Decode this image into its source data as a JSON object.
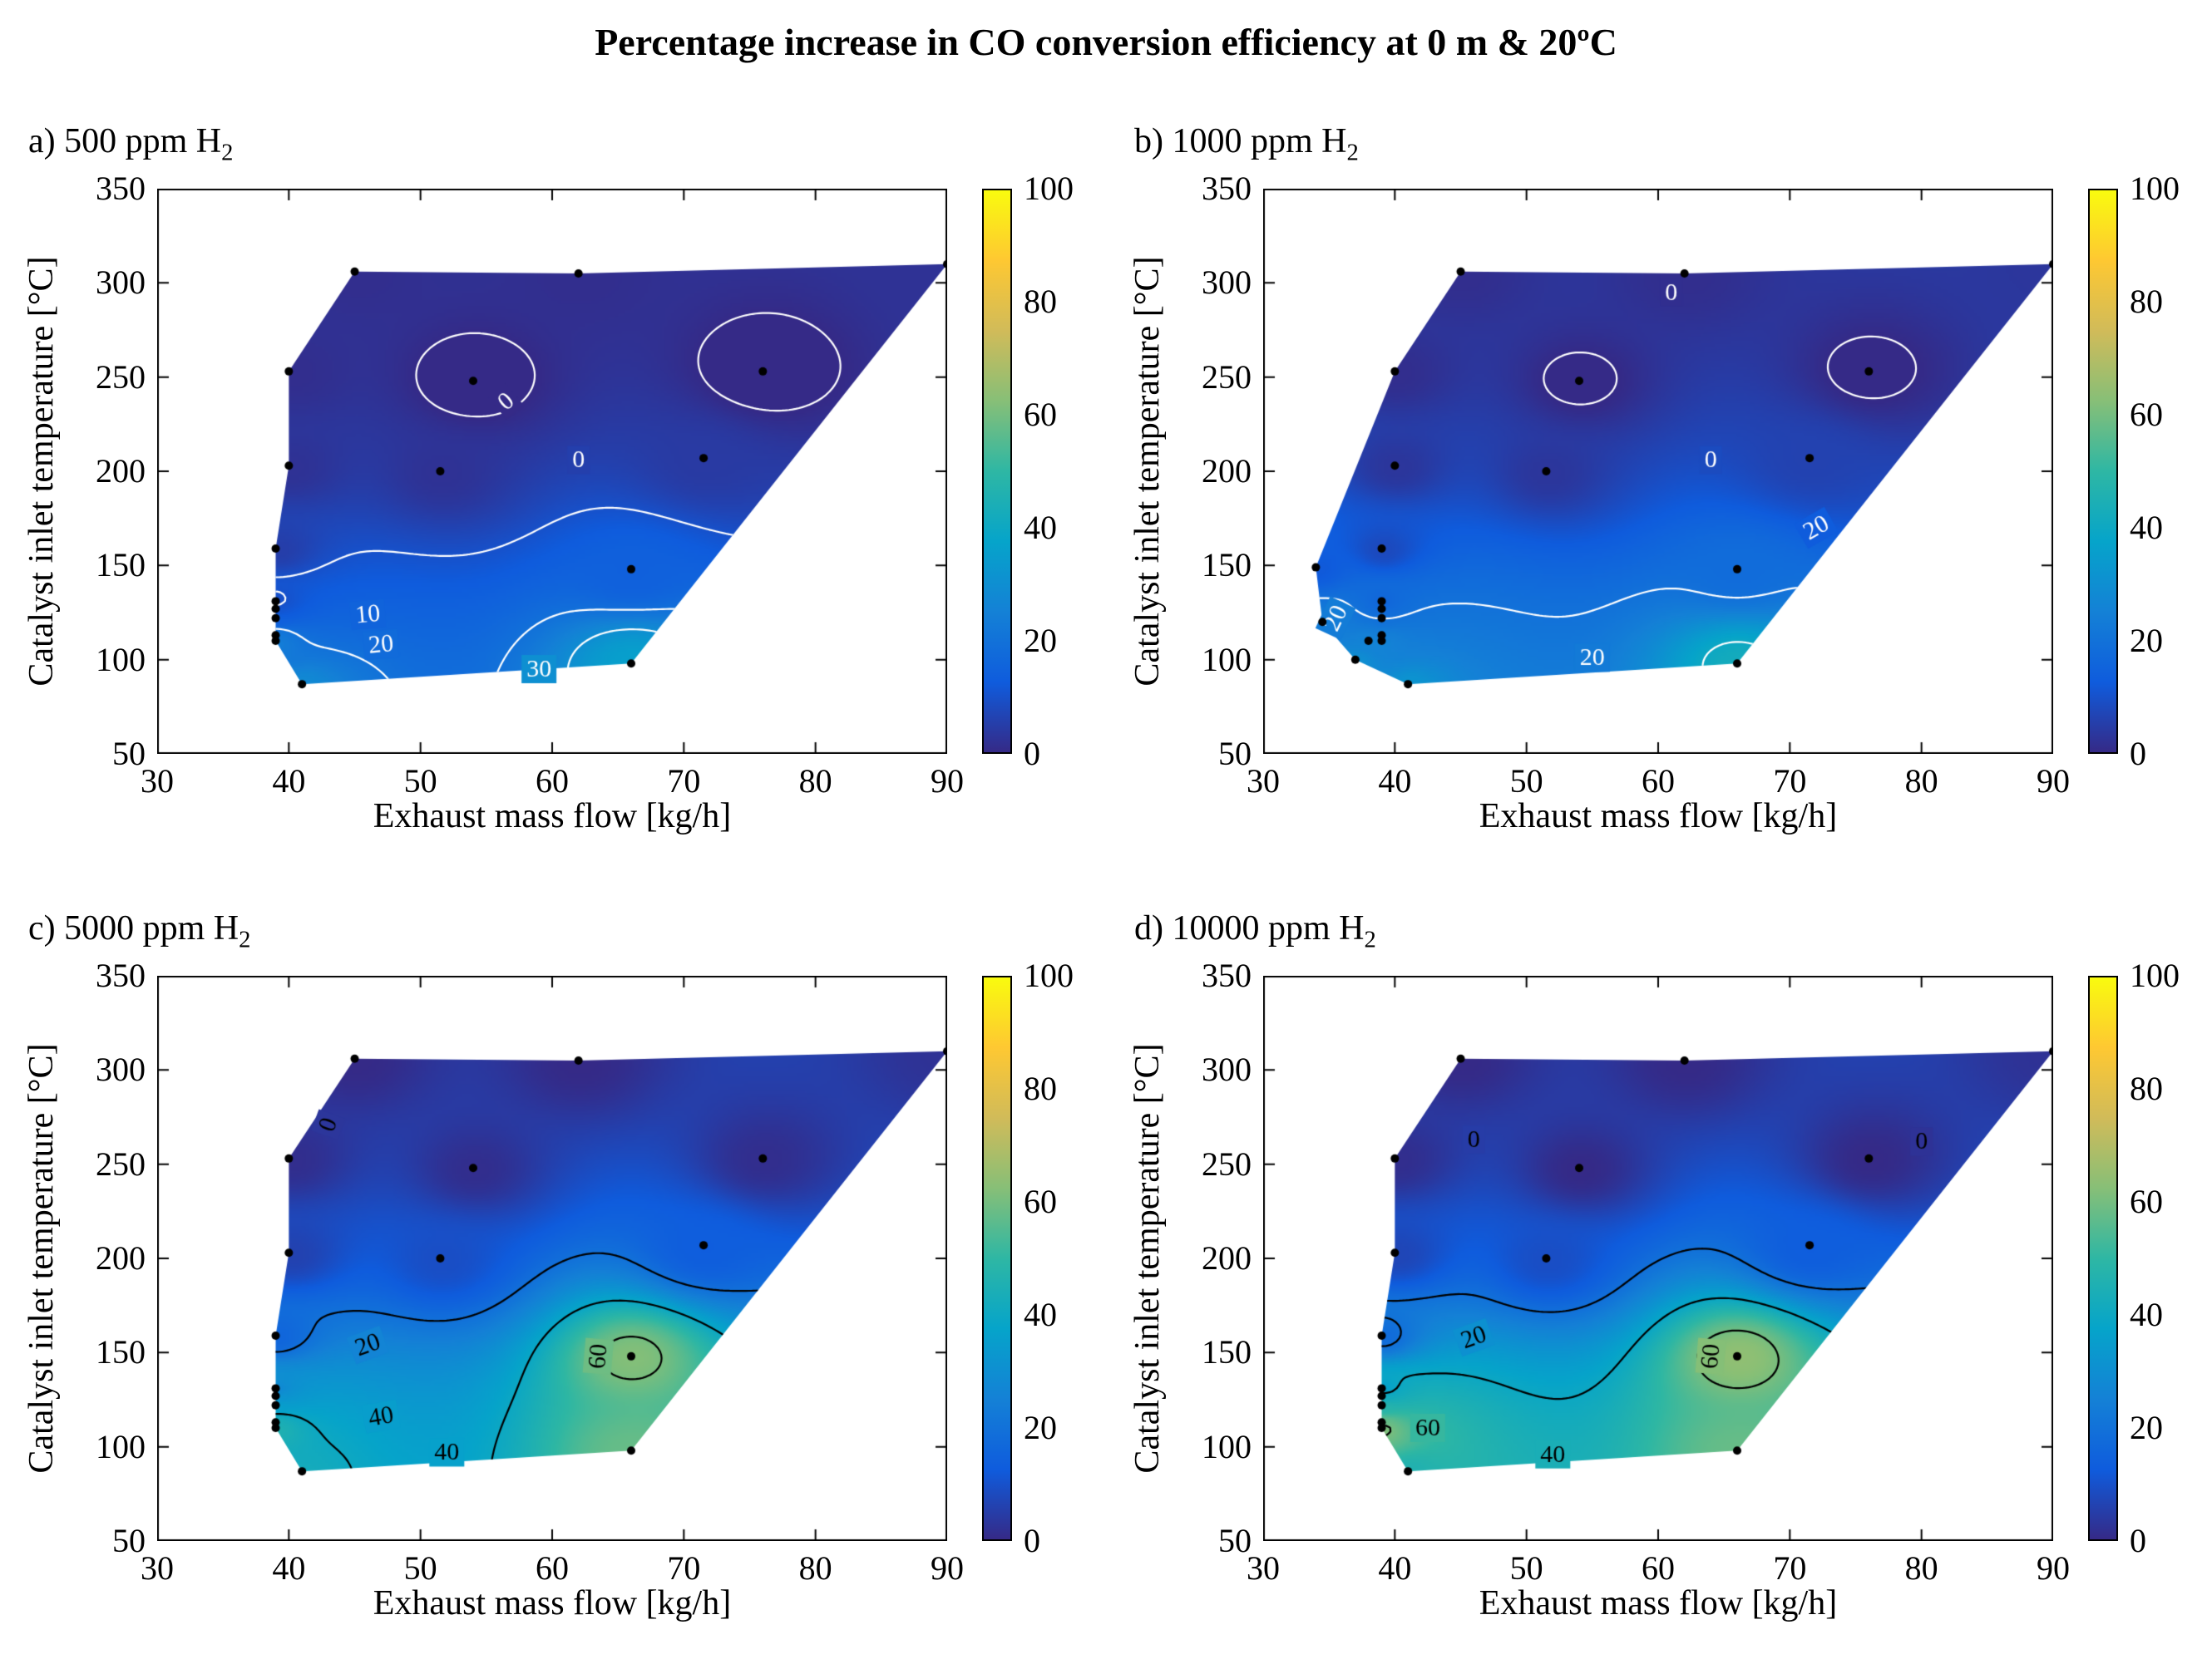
{
  "title": "Percentage increase in CO conversion efficiency at 0 m & 20ºC",
  "axes": {
    "xlabel": "Exhaust mass flow [kg/h]",
    "ylabel": "Catalyst inlet temperature [°C]",
    "xlim": [
      30,
      90
    ],
    "ylim": [
      50,
      350
    ],
    "clim": [
      0,
      100
    ],
    "xticks": [
      30,
      40,
      50,
      60,
      70,
      80,
      90
    ],
    "yticks": [
      50,
      100,
      150,
      200,
      250,
      300,
      350
    ],
    "cticks": [
      0,
      20,
      40,
      60,
      80,
      100
    ]
  },
  "colormap": {
    "name": "parula",
    "stops": [
      [
        53,
        42,
        135
      ],
      [
        15,
        92,
        221
      ],
      [
        20,
        129,
        214
      ],
      [
        6,
        164,
        202
      ],
      [
        46,
        183,
        164
      ],
      [
        135,
        191,
        119
      ],
      [
        209,
        187,
        89
      ],
      [
        254,
        200,
        50
      ],
      [
        249,
        251,
        14
      ]
    ]
  },
  "chart_data": [
    {
      "type": "filled-contour",
      "id": "a",
      "label_main": "a) 500 ppm H",
      "label_sub": "2",
      "contour_color": "#ffffff",
      "levels": [
        0,
        10,
        20,
        30
      ],
      "hull": [
        [
          41,
          87
        ],
        [
          39,
          110
        ],
        [
          39,
          131
        ],
        [
          39,
          159
        ],
        [
          40,
          203
        ],
        [
          40,
          253
        ],
        [
          45,
          306
        ],
        [
          62,
          305
        ],
        [
          90,
          310
        ],
        [
          66,
          98
        ]
      ],
      "points": [
        [
          41,
          87,
          28
        ],
        [
          39,
          110,
          24
        ],
        [
          39,
          113,
          22
        ],
        [
          39,
          122,
          14
        ],
        [
          39,
          127,
          11
        ],
        [
          39,
          131,
          9
        ],
        [
          39,
          159,
          5
        ],
        [
          40,
          203,
          2
        ],
        [
          40,
          253,
          1
        ],
        [
          45,
          306,
          1
        ],
        [
          51.5,
          200,
          2
        ],
        [
          54,
          248,
          -2
        ],
        [
          62,
          305,
          1
        ],
        [
          66,
          98,
          36
        ],
        [
          66,
          148,
          14
        ],
        [
          71.5,
          207,
          4
        ],
        [
          76,
          253,
          -2
        ],
        [
          90,
          310,
          2
        ]
      ],
      "contour_labels": [
        {
          "v": "0",
          "x": 56.5,
          "y": 237,
          "rot": 40
        },
        {
          "v": "0",
          "x": 62,
          "y": 206,
          "rot": 0
        },
        {
          "v": "10",
          "x": 46,
          "y": 124,
          "rot": 5
        },
        {
          "v": "20",
          "x": 47,
          "y": 108,
          "rot": 5
        },
        {
          "v": "30",
          "x": 59,
          "y": 95,
          "rot": 0
        }
      ]
    },
    {
      "type": "filled-contour",
      "id": "b",
      "label_main": "b) 1000 ppm H",
      "label_sub": "2",
      "contour_color": "#ffffff",
      "levels": [
        0,
        20,
        40
      ],
      "hull": [
        [
          41,
          87
        ],
        [
          37,
          100
        ],
        [
          34.5,
          120
        ],
        [
          34,
          149
        ],
        [
          40,
          253
        ],
        [
          45,
          306
        ],
        [
          62,
          305
        ],
        [
          90,
          310
        ],
        [
          66,
          98
        ]
      ],
      "points": [
        [
          41,
          87,
          32
        ],
        [
          39,
          110,
          26
        ],
        [
          39,
          113,
          24
        ],
        [
          39,
          122,
          20
        ],
        [
          39,
          127,
          18
        ],
        [
          39,
          131,
          16
        ],
        [
          39,
          159,
          8
        ],
        [
          40,
          203,
          3
        ],
        [
          40,
          253,
          1
        ],
        [
          45,
          306,
          1
        ],
        [
          51.5,
          200,
          3
        ],
        [
          54,
          248,
          -1
        ],
        [
          62,
          305,
          1
        ],
        [
          66,
          98,
          42
        ],
        [
          66,
          148,
          18
        ],
        [
          71.5,
          207,
          6
        ],
        [
          76,
          253,
          -1
        ],
        [
          90,
          310,
          3
        ],
        [
          34,
          149,
          12
        ],
        [
          34.5,
          120,
          24
        ],
        [
          37,
          100,
          30
        ],
        [
          38,
          110,
          26
        ]
      ],
      "contour_labels": [
        {
          "v": "0",
          "x": 61,
          "y": 295,
          "rot": 0
        },
        {
          "v": "0",
          "x": 64,
          "y": 206,
          "rot": 0
        },
        {
          "v": "20",
          "x": 35.5,
          "y": 122,
          "rot": 65
        },
        {
          "v": "20",
          "x": 55,
          "y": 101,
          "rot": 0
        },
        {
          "v": "20",
          "x": 72,
          "y": 170,
          "rot": 30
        }
      ]
    },
    {
      "type": "filled-contour",
      "id": "c",
      "label_main": "c) 5000 ppm H",
      "label_sub": "2",
      "contour_color": "#000000",
      "levels": [
        0,
        20,
        40,
        60
      ],
      "hull": [
        [
          41,
          87
        ],
        [
          39,
          110
        ],
        [
          39,
          131
        ],
        [
          39,
          159
        ],
        [
          40,
          203
        ],
        [
          40,
          253
        ],
        [
          45,
          306
        ],
        [
          62,
          305
        ],
        [
          90,
          310
        ],
        [
          66,
          98
        ]
      ],
      "points": [
        [
          41,
          87,
          42
        ],
        [
          39,
          110,
          46
        ],
        [
          39,
          113,
          44
        ],
        [
          39,
          122,
          36
        ],
        [
          39,
          127,
          32
        ],
        [
          39,
          131,
          28
        ],
        [
          39,
          159,
          16
        ],
        [
          40,
          203,
          6
        ],
        [
          40,
          253,
          1
        ],
        [
          45,
          306,
          0
        ],
        [
          51.5,
          200,
          9
        ],
        [
          54,
          248,
          1
        ],
        [
          62,
          305,
          0
        ],
        [
          66,
          98,
          58
        ],
        [
          66,
          148,
          62
        ],
        [
          71.5,
          207,
          13
        ],
        [
          76,
          253,
          1
        ],
        [
          90,
          310,
          2
        ]
      ],
      "contour_labels": [
        {
          "v": "0",
          "x": 43,
          "y": 271,
          "rot": 70
        },
        {
          "v": "20",
          "x": 46,
          "y": 154,
          "rot": 20
        },
        {
          "v": "40",
          "x": 47,
          "y": 116,
          "rot": 10
        },
        {
          "v": "40",
          "x": 52,
          "y": 97,
          "rot": 0
        },
        {
          "v": "60",
          "x": 63.5,
          "y": 148,
          "rot": 85
        }
      ]
    },
    {
      "type": "filled-contour",
      "id": "d",
      "label_main": "d) 10000 ppm H",
      "label_sub": "2",
      "contour_color": "#000000",
      "levels": [
        0,
        20,
        40,
        60
      ],
      "hull": [
        [
          41,
          87
        ],
        [
          39,
          110
        ],
        [
          39,
          131
        ],
        [
          39,
          159
        ],
        [
          40,
          203
        ],
        [
          40,
          253
        ],
        [
          45,
          306
        ],
        [
          62,
          305
        ],
        [
          90,
          310
        ],
        [
          66,
          98
        ]
      ],
      "points": [
        [
          41,
          87,
          46
        ],
        [
          39,
          110,
          62
        ],
        [
          39,
          113,
          58
        ],
        [
          39,
          122,
          48
        ],
        [
          39,
          127,
          42
        ],
        [
          39,
          131,
          36
        ],
        [
          39,
          159,
          18
        ],
        [
          40,
          203,
          7
        ],
        [
          40,
          253,
          1
        ],
        [
          45,
          306,
          0
        ],
        [
          51.5,
          200,
          9
        ],
        [
          54,
          248,
          0
        ],
        [
          62,
          305,
          0
        ],
        [
          66,
          98,
          58
        ],
        [
          66,
          148,
          64
        ],
        [
          71.5,
          207,
          13
        ],
        [
          76,
          253,
          0
        ],
        [
          90,
          310,
          2
        ]
      ],
      "contour_labels": [
        {
          "v": "0",
          "x": 46,
          "y": 263,
          "rot": 0
        },
        {
          "v": "0",
          "x": 80,
          "y": 262,
          "rot": 0
        },
        {
          "v": "20",
          "x": 46,
          "y": 158,
          "rot": 20
        },
        {
          "v": "60",
          "x": 42.5,
          "y": 110,
          "rot": 0
        },
        {
          "v": "40",
          "x": 52,
          "y": 96,
          "rot": 0
        },
        {
          "v": "60",
          "x": 64,
          "y": 148,
          "rot": 85
        }
      ]
    }
  ]
}
